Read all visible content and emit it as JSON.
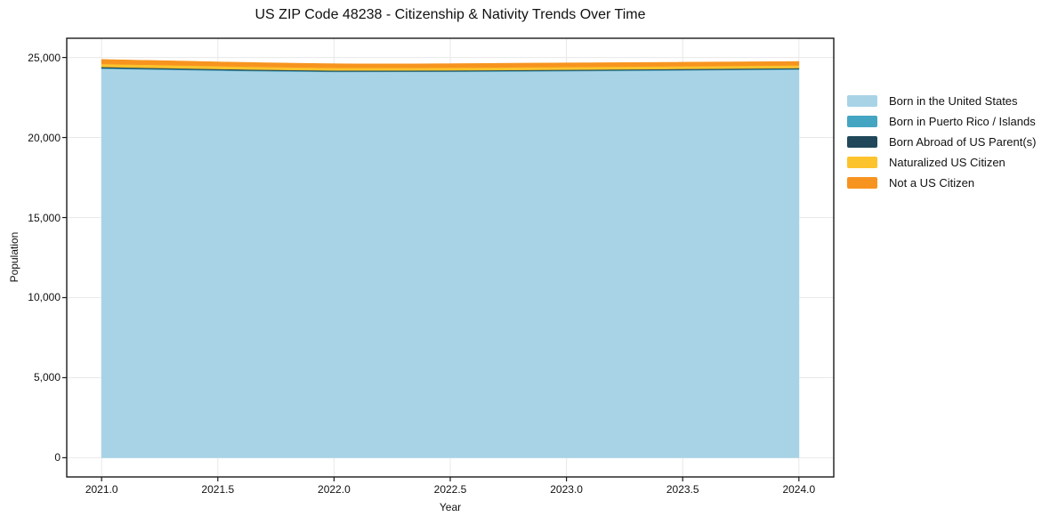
{
  "title": "US ZIP Code 48238 - Citizenship & Nativity Trends Over Time",
  "chart_data": {
    "type": "area",
    "stacked": true,
    "x": [
      2021,
      2022,
      2023,
      2024
    ],
    "series": [
      {
        "name": "Born in the United States",
        "color": "#a8d3e6",
        "values": [
          24300,
          24100,
          24150,
          24250
        ]
      },
      {
        "name": "Born in Puerto Rico / Islands",
        "color": "#43a5c1",
        "values": [
          40,
          30,
          30,
          30
        ]
      },
      {
        "name": "Born Abroad of US Parent(s)",
        "color": "#20485a",
        "values": [
          70,
          60,
          60,
          60
        ]
      },
      {
        "name": "Naturalized US Citizen",
        "color": "#fcc32d",
        "values": [
          190,
          170,
          170,
          170
        ]
      },
      {
        "name": "Not a US Citizen",
        "color": "#f7941f",
        "values": [
          280,
          250,
          250,
          240
        ]
      }
    ],
    "title": "US ZIP Code 48238 - Citizenship & Nativity Trends Over Time",
    "xlabel": "Year",
    "ylabel": "Population",
    "xlim": [
      2020.85,
      2024.15
    ],
    "ylim": [
      -1200,
      26200
    ],
    "xticks": {
      "values": [
        2021.0,
        2021.5,
        2022.0,
        2022.5,
        2023.0,
        2023.5,
        2024.0
      ],
      "labels": [
        "2021.0",
        "2021.5",
        "2022.0",
        "2022.5",
        "2023.0",
        "2023.5",
        "2024.0"
      ]
    },
    "yticks": {
      "values": [
        0,
        5000,
        10000,
        15000,
        20000,
        25000
      ],
      "labels": [
        "0",
        "5,000",
        "10,000",
        "15,000",
        "20,000",
        "25,000"
      ]
    },
    "grid": true,
    "grid_color": "#e8e8e8",
    "axis_color": "#1a1a1a",
    "legend_position": "right-outside",
    "legend_entries": [
      "Born in the United States",
      "Born in Puerto Rico / Islands",
      "Born Abroad of US Parent(s)",
      "Naturalized US Citizen",
      "Not a US Citizen"
    ]
  }
}
